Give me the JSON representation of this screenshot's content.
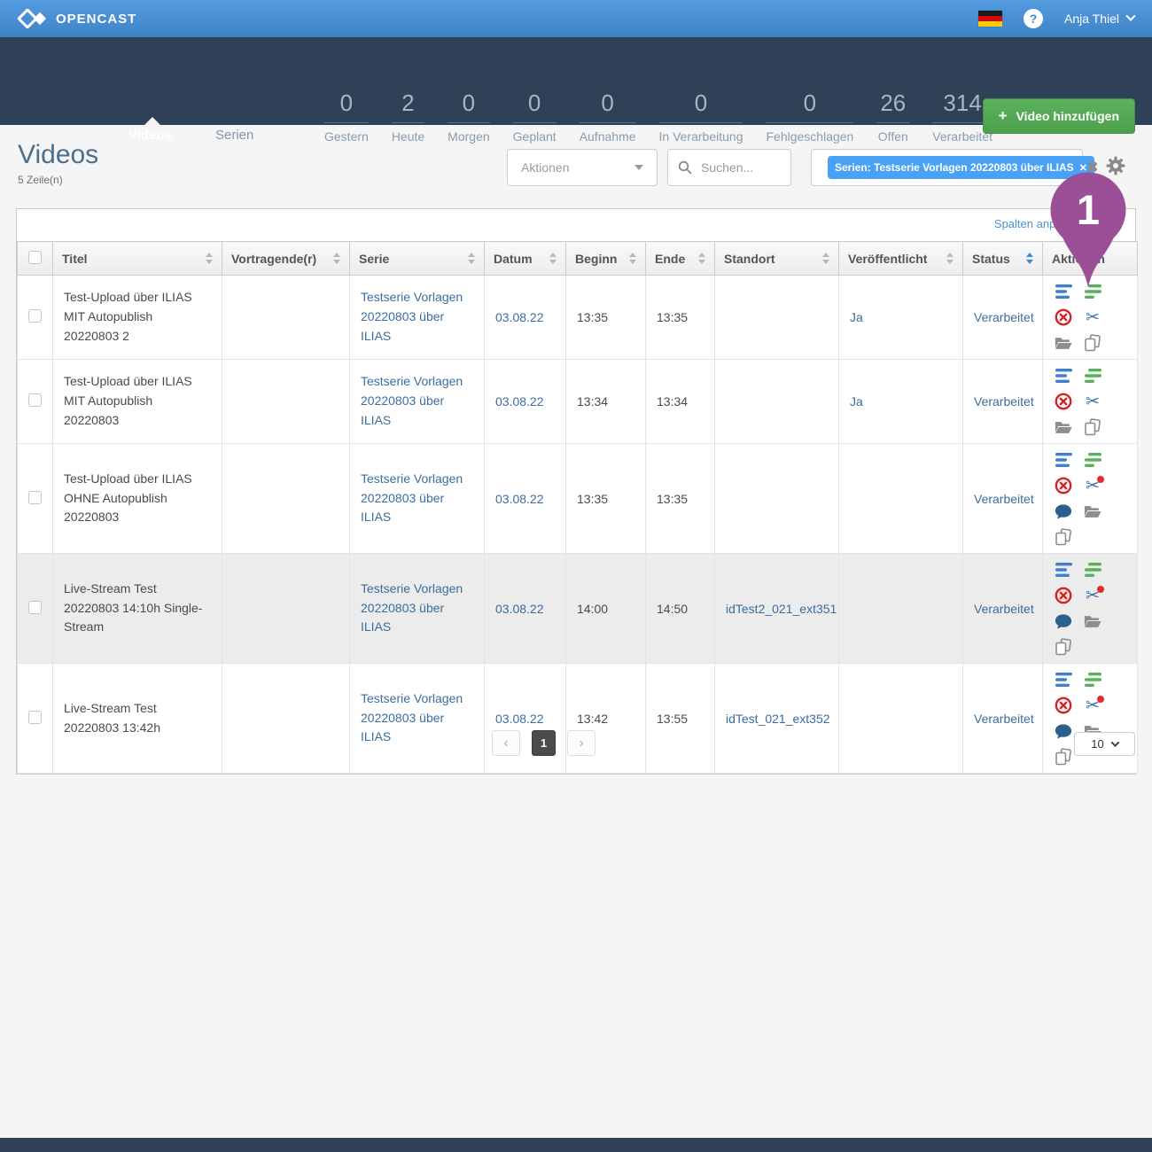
{
  "topbar": {
    "brand": "OPENCAST",
    "language_flag": "german",
    "help_label": "?",
    "user_name": "Anja Thiel"
  },
  "nav": {
    "tabs": [
      {
        "label": "Videos",
        "active": true
      },
      {
        "label": "Serien",
        "active": false
      }
    ],
    "stats": [
      {
        "value": "0",
        "label": "Gestern"
      },
      {
        "value": "2",
        "label": "Heute"
      },
      {
        "value": "0",
        "label": "Morgen"
      },
      {
        "value": "0",
        "label": "Geplant"
      },
      {
        "value": "0",
        "label": "Aufnahme"
      },
      {
        "value": "0",
        "label": "In Verarbeitung"
      },
      {
        "value": "0",
        "label": "Fehlgeschlagen"
      },
      {
        "value": "26",
        "label": "Offen"
      },
      {
        "value": "314",
        "label": "Verarbeitet"
      }
    ],
    "add_button_label": "Video hinzufügen",
    "add_button_plus": "+"
  },
  "page": {
    "title": "Videos",
    "row_count_label": "5 Zeile(n)"
  },
  "toolbar": {
    "actions_dropdown_label": "Aktionen",
    "search_placeholder": "Suchen...",
    "filter_chip_label": "Serien: Testserie Vorlagen 20220803 über ILIAS",
    "filter_chip_remove": "✕",
    "clear_filters_glyph": "✖",
    "columns_link_label": "Spalten anpassen"
  },
  "table": {
    "columns": [
      {
        "label": "Titel",
        "sortable": true,
        "sorted": false
      },
      {
        "label": "Vortragende(r)",
        "sortable": true,
        "sorted": false
      },
      {
        "label": "Serie",
        "sortable": true,
        "sorted": false
      },
      {
        "label": "Datum",
        "sortable": true,
        "sorted": false
      },
      {
        "label": "Beginn",
        "sortable": true,
        "sorted": false
      },
      {
        "label": "Ende",
        "sortable": true,
        "sorted": false
      },
      {
        "label": "Standort",
        "sortable": true,
        "sorted": false
      },
      {
        "label": "Veröffentlicht",
        "sortable": true,
        "sorted": false
      },
      {
        "label": "Status",
        "sortable": true,
        "sorted": true
      },
      {
        "label": "Aktionen",
        "sortable": false,
        "sorted": false
      }
    ],
    "rows": [
      {
        "title": "Test-Upload über ILIAS MIT Autopublish 20220803 2",
        "presenter": "",
        "series": "Testserie Vorlagen 20220803 über ILIAS",
        "date": "03.08.22",
        "begin": "13:35",
        "end": "13:35",
        "location": "",
        "published": "Ja",
        "status": "Verarbeitet",
        "highlighted": false,
        "actions": [
          "details",
          "publications",
          "delete",
          "editor",
          "assets",
          "duplicate"
        ]
      },
      {
        "title": "Test-Upload über ILIAS MIT Autopublish 20220803",
        "presenter": "",
        "series": "Testserie Vorlagen 20220803 über ILIAS",
        "date": "03.08.22",
        "begin": "13:34",
        "end": "13:34",
        "location": "",
        "published": "Ja",
        "status": "Verarbeitet",
        "highlighted": false,
        "actions": [
          "details",
          "publications",
          "delete",
          "editor",
          "assets",
          "duplicate"
        ]
      },
      {
        "title": "Test-Upload über ILIAS OHNE Autopublish 20220803",
        "presenter": "",
        "series": "Testserie Vorlagen 20220803 über ILIAS",
        "date": "03.08.22",
        "begin": "13:35",
        "end": "13:35",
        "location": "",
        "published": "",
        "status": "Verarbeitet",
        "highlighted": false,
        "actions": [
          "details",
          "publications",
          "delete",
          "editor-alert",
          "comments",
          "assets",
          "duplicate"
        ]
      },
      {
        "title": "Live-Stream Test 20220803 14:10h Single-Stream",
        "presenter": "",
        "series": "Testserie Vorlagen 20220803 über ILIAS",
        "date": "03.08.22",
        "begin": "14:00",
        "end": "14:50",
        "location": "idTest2_021_ext351",
        "published": "",
        "status": "Verarbeitet",
        "highlighted": true,
        "actions": [
          "details",
          "publications",
          "delete",
          "editor-alert",
          "comments",
          "assets",
          "duplicate"
        ]
      },
      {
        "title": "Live-Stream Test 20220803 13:42h",
        "presenter": "",
        "series": "Testserie Vorlagen 20220803 über ILIAS",
        "date": "03.08.22",
        "begin": "13:42",
        "end": "13:55",
        "location": "idTest_021_ext352",
        "published": "",
        "status": "Verarbeitet",
        "highlighted": false,
        "actions": [
          "details",
          "publications",
          "delete",
          "editor-alert",
          "comments",
          "assets",
          "duplicate"
        ]
      }
    ]
  },
  "pagination": {
    "prev_glyph": "‹",
    "current_page": "1",
    "next_glyph": "›",
    "page_size": "10"
  },
  "annotation_marker": {
    "label": "1",
    "color": "#9b4f96"
  },
  "colors": {
    "link_blue": "#3a6d9e",
    "chip_blue": "#4aa2f7",
    "button_green": "#4da04d",
    "navbar_navy": "#2e4156",
    "details_icon_blue": "#3e7fd0",
    "publications_icon_green": "#58b158",
    "delete_icon_red": "#da1f1f",
    "editor_icon_blue": "#3b6ea5",
    "comments_icon_blue": "#2d608d",
    "neutral_icon_gray": "#8d8d8d",
    "marker_purple": "#9b4f96"
  }
}
